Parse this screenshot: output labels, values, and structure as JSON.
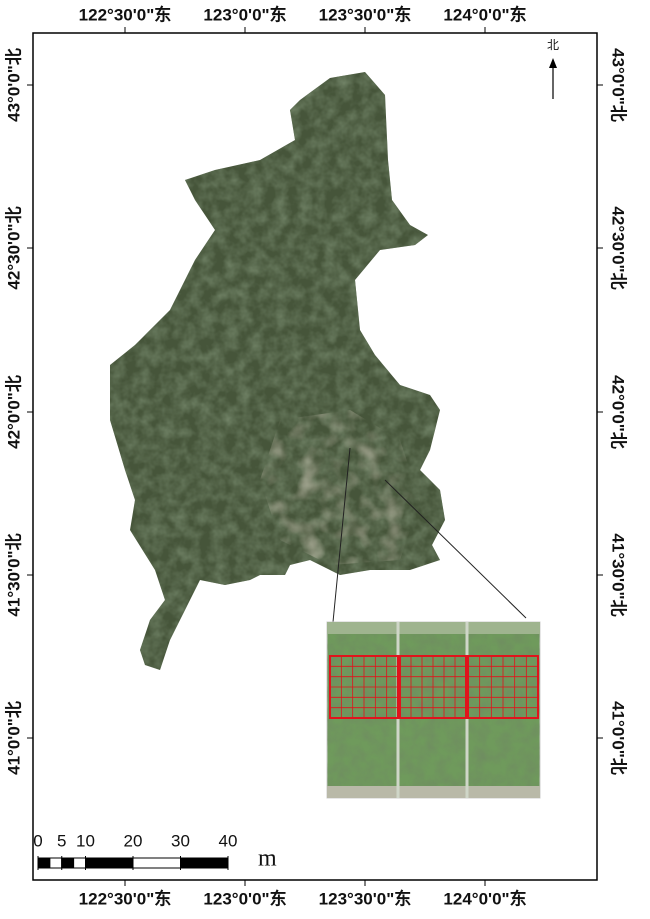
{
  "map": {
    "top_labels": [
      "122°30'0\"东",
      "123°0'0\"东",
      "123°30'0\"东",
      "124°0'0\"东"
    ],
    "bottom_labels": [
      "122°30'0\"东",
      "123°0'0\"东",
      "123°30'0\"东",
      "124°0'0\"东"
    ],
    "left_labels": [
      "43°0'0\"北",
      "42°30'0\"北",
      "42°0'0\"北",
      "41°30'0\"北",
      "41°0'0\"北"
    ],
    "right_labels": [
      "43°0'0\"北",
      "42°30'0\"北",
      "42°0'0\"北",
      "41°30'0\"北",
      "41°0'0\"北"
    ],
    "north_label": "北",
    "scale": {
      "ticks": [
        0,
        5,
        10,
        20,
        30,
        40
      ],
      "unit": "m"
    }
  }
}
